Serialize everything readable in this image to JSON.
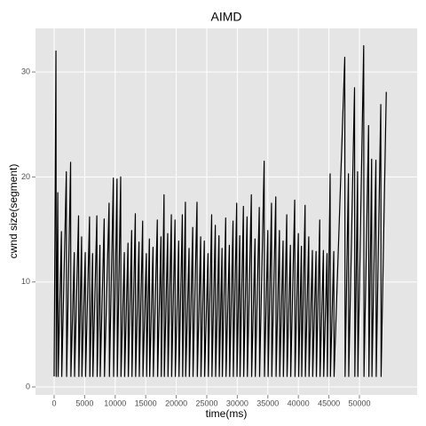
{
  "chart_data": {
    "type": "line",
    "title": "AIMD",
    "x_label": "time(ms)",
    "y_label": "cwnd size(segment)",
    "color": "#000000",
    "grid": true,
    "x": [
      0,
      300,
      350,
      600,
      650,
      1200,
      1250,
      2000,
      2050,
      2700,
      2750,
      3300,
      3350,
      4000,
      4050,
      4500,
      4550,
      5100,
      5150,
      5800,
      5850,
      6300,
      6350,
      7000,
      7050,
      7500,
      7550,
      8200,
      8250,
      9000,
      9050,
      9700,
      9750,
      10300,
      10350,
      10900,
      10950,
      11500,
      11550,
      12100,
      12150,
      12700,
      12750,
      13300,
      13350,
      13900,
      13950,
      14500,
      14550,
      15100,
      15150,
      15600,
      15650,
      16200,
      16250,
      16900,
      16950,
      17500,
      17550,
      18000,
      18050,
      18600,
      18650,
      19200,
      19250,
      19800,
      19850,
      20400,
      20450,
      21000,
      21050,
      21500,
      21550,
      22100,
      22150,
      22700,
      22750,
      23400,
      23450,
      24000,
      24050,
      24600,
      24650,
      25200,
      25250,
      25800,
      25850,
      26400,
      26450,
      27000,
      27050,
      27500,
      27550,
      28100,
      28150,
      28700,
      28750,
      29300,
      29350,
      29900,
      29950,
      30400,
      30450,
      31000,
      31050,
      31600,
      31650,
      32300,
      32350,
      32900,
      32950,
      33600,
      33650,
      34400,
      34450,
      35000,
      35050,
      35600,
      35650,
      36300,
      36350,
      36900,
      36950,
      37500,
      37550,
      38100,
      38150,
      38700,
      38750,
      39400,
      39450,
      40000,
      40050,
      40500,
      40550,
      41100,
      41150,
      41700,
      41750,
      42300,
      42350,
      42900,
      42950,
      43500,
      43550,
      44100,
      44150,
      44700,
      44750,
      45200,
      45250,
      45800,
      45850,
      47600,
      47650,
      48200,
      48250,
      49200,
      49250,
      49700,
      49750,
      50700,
      50750,
      51500,
      51550,
      52000,
      52050,
      52700,
      52750,
      53500,
      53550,
      54400
    ],
    "values": [
      1,
      32,
      1,
      18.5,
      1,
      14.8,
      1,
      20.5,
      1,
      21.4,
      1,
      12.8,
      1,
      16.3,
      1,
      14.3,
      1,
      12.8,
      1,
      16.2,
      1,
      12.7,
      1,
      16.3,
      1,
      13.5,
      1,
      16,
      1,
      17.5,
      1,
      19.9,
      1,
      19.8,
      1,
      20,
      1,
      12.8,
      1,
      13.7,
      1,
      14.9,
      1,
      16.5,
      1,
      13.8,
      1,
      15.8,
      1,
      12.7,
      1,
      14.1,
      1,
      13.3,
      1,
      15.9,
      1,
      14.3,
      1,
      18.3,
      1,
      14.6,
      1,
      16.4,
      1,
      15.9,
      1,
      13.9,
      1,
      16.4,
      1,
      17.6,
      1,
      13.2,
      1,
      15.2,
      1,
      17.6,
      1,
      14.3,
      1,
      13.9,
      1,
      12.7,
      1,
      16.4,
      1,
      15.4,
      1,
      14.4,
      1,
      13.2,
      1,
      16.1,
      1,
      13.5,
      1,
      15.8,
      1,
      17.5,
      1,
      14.4,
      1,
      17.2,
      1,
      16.2,
      1,
      18.3,
      1,
      14.1,
      1,
      17.1,
      1,
      21.5,
      1,
      14.9,
      1,
      17.5,
      1,
      18.1,
      1,
      14.9,
      1,
      13.9,
      1,
      16.4,
      1,
      13.5,
      1,
      17.8,
      1,
      14.6,
      1,
      13.4,
      1,
      17.3,
      1,
      14.3,
      1,
      13,
      1,
      12.9,
      1,
      15.9,
      1,
      13,
      1,
      12.7,
      1,
      20.3,
      1,
      12.9,
      1,
      31.4,
      1,
      20.3,
      1,
      28.5,
      1,
      20.5,
      1,
      32.5,
      1,
      24.9,
      1,
      21.7,
      1,
      21.6,
      1,
      26.9,
      1,
      28.1
    ],
    "xlim": [
      -3050,
      59450
    ],
    "ylim": [
      -0.76,
      34.15
    ],
    "xticks": [
      0,
      5000,
      10000,
      15000,
      20000,
      25000,
      30000,
      35000,
      40000,
      45000,
      50000
    ],
    "yticks": [
      0,
      10,
      20,
      30
    ]
  }
}
